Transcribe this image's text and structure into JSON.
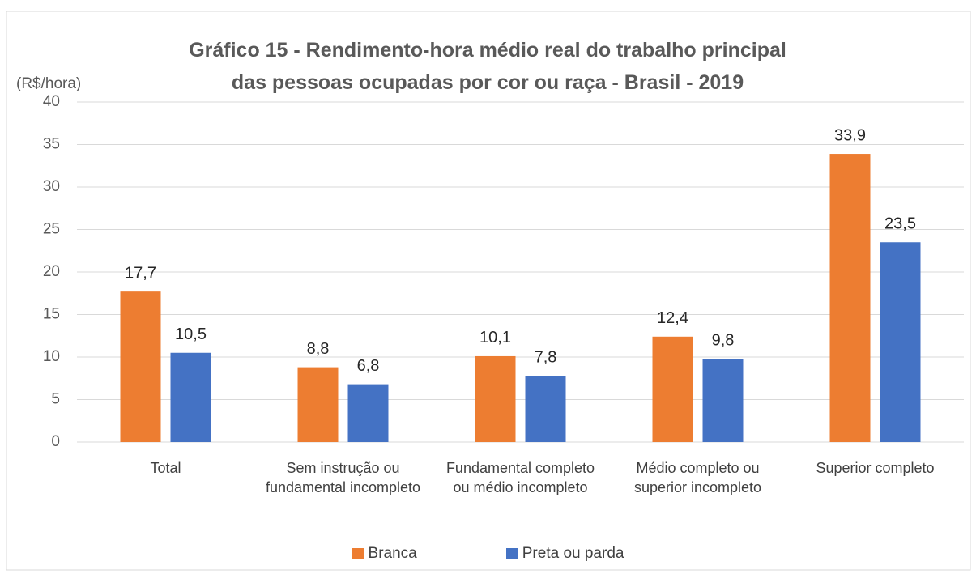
{
  "chart_data": {
    "type": "bar",
    "title": "Gráfico 15 - Rendimento-hora médio real do trabalho principal das pessoas ocupadas por cor ou raça - Brasil - 2019",
    "y_label": "(R$/hora)",
    "categories": [
      "Total",
      "Sem instrução ou fundamental incompleto",
      "Fundamental completo ou médio incompleto",
      "Médio completo ou superior incompleto",
      "Superior completo"
    ],
    "series": [
      {
        "name": "Branca",
        "color": "#ed7d31",
        "values": [
          17.7,
          8.8,
          10.1,
          12.4,
          33.9
        ],
        "value_labels": [
          "17,7",
          "8,8",
          "10,1",
          "12,4",
          "33,9"
        ]
      },
      {
        "name": "Preta ou parda",
        "color": "#4472c4",
        "values": [
          10.5,
          6.8,
          7.8,
          9.8,
          23.5
        ],
        "value_labels": [
          "10,5",
          "6,8",
          "7,8",
          "9,8",
          "23,5"
        ]
      }
    ],
    "ylim": [
      0,
      40
    ],
    "yticks": [
      0,
      5,
      10,
      15,
      20,
      25,
      30,
      35,
      40
    ],
    "grid": true,
    "legend": "bottom"
  }
}
